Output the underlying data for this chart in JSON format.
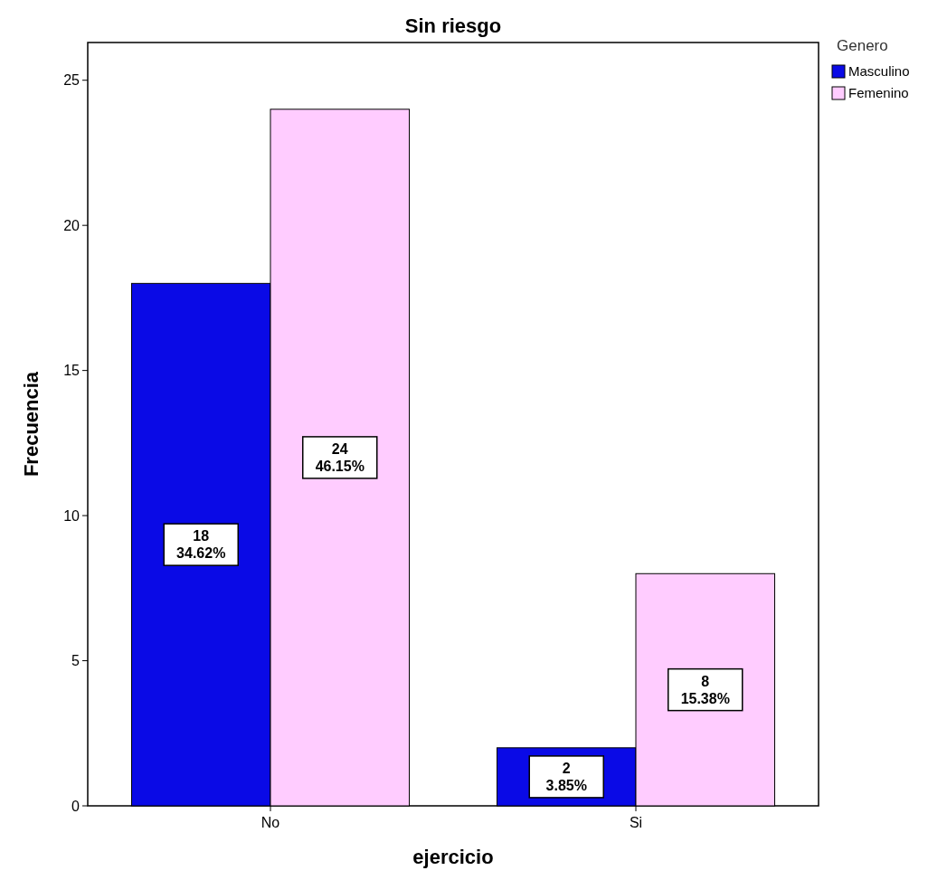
{
  "chart_data": {
    "type": "bar",
    "title": "Sin riesgo",
    "xlabel": "ejercicio",
    "ylabel": "Frecuencia",
    "legend_title": "Genero",
    "categories": [
      "No",
      "Si"
    ],
    "series": [
      {
        "name": "Masculino",
        "color": "#0a0ae6",
        "values": [
          18,
          2
        ],
        "value_labels": [
          "18\n34.62%",
          "2\n3.85%"
        ]
      },
      {
        "name": "Femenino",
        "color": "#ffccff",
        "values": [
          24,
          8
        ],
        "value_labels": [
          "24\n46.15%",
          "8\n15.38%"
        ]
      }
    ],
    "ylim": [
      0,
      26.3
    ],
    "yticks": [
      0,
      5,
      10,
      15,
      20,
      25
    ],
    "grid": false,
    "legend": "right"
  }
}
